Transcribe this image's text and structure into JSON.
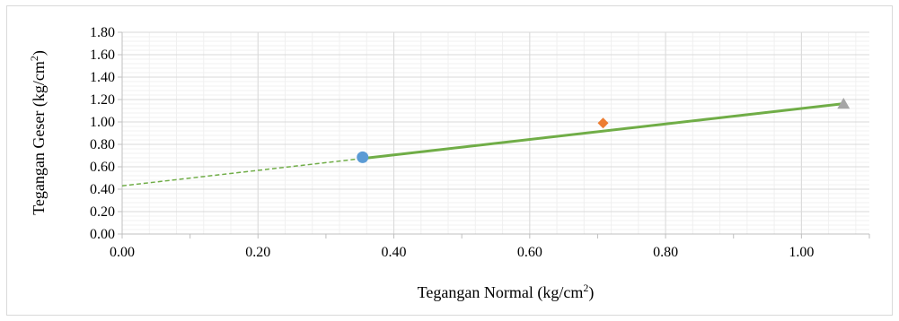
{
  "chart_data": {
    "type": "scatter",
    "xlabel": "Tegangan Normal (kg/cm",
    "xlabel_sup": "2",
    "xlabel_end": ")",
    "ylabel": "Tegangan Geser (kg/cm",
    "ylabel_sup": "2",
    "ylabel_end": ")",
    "xlim": [
      0,
      1.1
    ],
    "ylim": [
      0,
      1.8
    ],
    "x_ticks": [
      "0.00",
      "0.20",
      "0.40",
      "0.60",
      "0.80",
      "1.00"
    ],
    "y_ticks": [
      "0.00",
      "0.20",
      "0.40",
      "0.60",
      "0.80",
      "1.00",
      "1.20",
      "1.40",
      "1.60",
      "1.80"
    ],
    "grid": true,
    "points": [
      {
        "x": 0.354,
        "y": 0.685,
        "marker": "circle",
        "color": "#5b9bd5"
      },
      {
        "x": 0.708,
        "y": 0.99,
        "marker": "diamond",
        "color": "#ed7d31"
      },
      {
        "x": 1.062,
        "y": 1.16,
        "marker": "triangle",
        "color": "#a5a5a5"
      }
    ],
    "trendline": {
      "intercept": 0.43,
      "slope": 0.69,
      "solid_from_x": 0.354,
      "solid_to_x": 1.062,
      "dashed_from_x": 0.0,
      "color": "#70ad47"
    }
  }
}
